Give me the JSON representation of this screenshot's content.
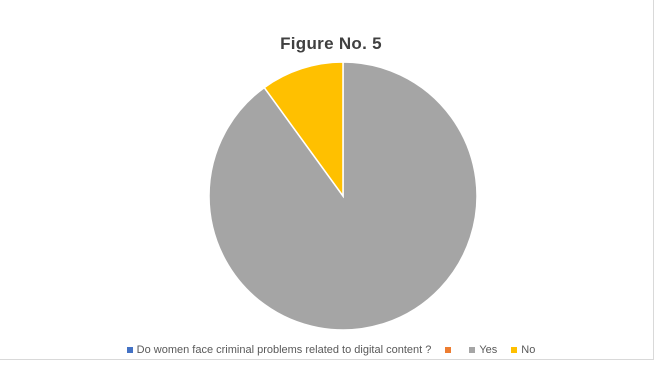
{
  "chart_data": {
    "type": "pie",
    "title": "Figure No. 5",
    "legend": {
      "placement": "bottom",
      "entries": [
        {
          "label": "Do women face criminal problems related to digital content ?",
          "color": "#4472c4"
        },
        {
          "label": "",
          "color": "#ed7d31"
        },
        {
          "label": "Yes",
          "color": "#a5a5a5"
        },
        {
          "label": "No",
          "color": "#ffc000"
        }
      ]
    },
    "slices": [
      {
        "label": "Yes",
        "value": 90,
        "color": "#a5a5a5"
      },
      {
        "label": "No",
        "value": 10,
        "color": "#ffc000"
      }
    ]
  }
}
